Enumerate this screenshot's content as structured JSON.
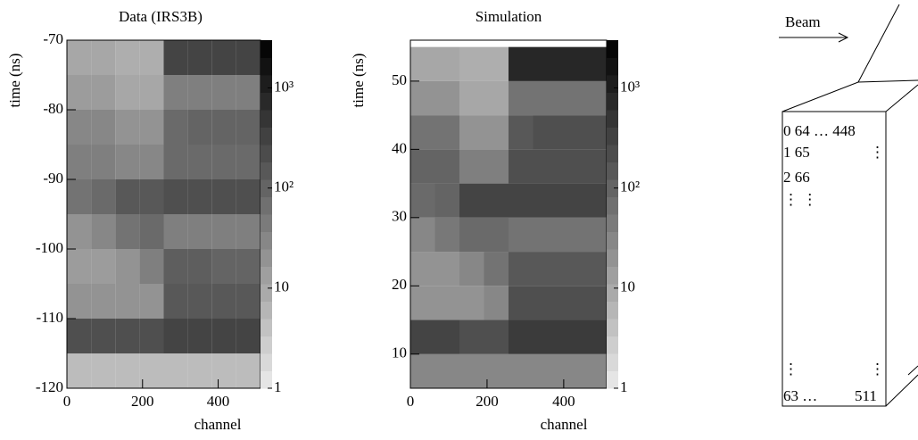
{
  "chart_data": [
    {
      "type": "heatmap",
      "title": "Data (IRS3B)",
      "x_label": "channel",
      "y_label": "time (ns)",
      "xbins": [
        0,
        64,
        128,
        192,
        256,
        320,
        384,
        448,
        512
      ],
      "ybins": [
        -120,
        -115,
        -110,
        -105,
        -100,
        -95,
        -90,
        -85,
        -80,
        -75,
        -70
      ],
      "z": [
        [
          5,
          5,
          5,
          5,
          5,
          5,
          5,
          5
        ],
        [
          200,
          200,
          200,
          200,
          300,
          300,
          300,
          300
        ],
        [
          20,
          20,
          20,
          20,
          150,
          150,
          150,
          150
        ],
        [
          15,
          15,
          20,
          40,
          120,
          120,
          100,
          100
        ],
        [
          20,
          30,
          60,
          80,
          40,
          40,
          40,
          40
        ],
        [
          60,
          80,
          150,
          150,
          200,
          200,
          200,
          200
        ],
        [
          40,
          40,
          30,
          30,
          80,
          80,
          80,
          80
        ],
        [
          30,
          30,
          20,
          20,
          80,
          100,
          100,
          100
        ],
        [
          15,
          15,
          10,
          10,
          40,
          40,
          40,
          40
        ],
        [
          10,
          10,
          8,
          8,
          300,
          300,
          300,
          300
        ]
      ],
      "xlim": [
        0,
        512
      ],
      "xticks": [
        0,
        200,
        400
      ],
      "ylim": [
        -120,
        -70
      ],
      "yticks": [
        -120,
        -110,
        -100,
        -90,
        -80,
        -70
      ],
      "zlim": [
        1,
        3000
      ],
      "zlog": true,
      "zticks": [
        1,
        10,
        {
          "value": 100,
          "label": "10²"
        },
        {
          "value": 1000,
          "label": "10³"
        }
      ]
    },
    {
      "type": "heatmap",
      "title": "Simulation",
      "x_label": "channel",
      "y_label": "time (ns)",
      "xbins": [
        0,
        64,
        128,
        192,
        256,
        320,
        384,
        448,
        512
      ],
      "ybins": [
        5,
        10,
        15,
        20,
        25,
        30,
        35,
        40,
        45,
        50,
        55
      ],
      "z": [
        [
          30,
          30,
          30,
          30,
          30,
          30,
          30,
          30
        ],
        [
          300,
          300,
          200,
          200,
          400,
          400,
          400,
          400
        ],
        [
          20,
          20,
          20,
          30,
          200,
          200,
          200,
          200
        ],
        [
          20,
          20,
          30,
          60,
          150,
          150,
          150,
          150
        ],
        [
          30,
          50,
          80,
          80,
          60,
          60,
          60,
          60
        ],
        [
          80,
          100,
          300,
          300,
          300,
          300,
          300,
          300
        ],
        [
          100,
          100,
          40,
          40,
          200,
          200,
          200,
          200
        ],
        [
          60,
          60,
          20,
          20,
          150,
          200,
          200,
          200
        ],
        [
          20,
          20,
          10,
          10,
          60,
          60,
          60,
          60
        ],
        [
          10,
          10,
          8,
          8,
          800,
          800,
          800,
          800
        ]
      ],
      "xlim": [
        0,
        512
      ],
      "xticks": [
        0,
        200,
        400
      ],
      "ylim": [
        5,
        56
      ],
      "yticks": [
        10,
        20,
        30,
        40,
        50
      ],
      "zlim": [
        1,
        3000
      ],
      "zlog": true,
      "zticks": [
        1,
        10,
        {
          "value": 100,
          "label": "10²"
        },
        {
          "value": 1000,
          "label": "10³"
        }
      ]
    }
  ],
  "diagram": {
    "arrow_label": "Beam",
    "labels": [
      "0 64 … 448",
      "1 65",
      "⋮",
      "2 66",
      "⋮ ⋮",
      "⋮",
      "⋮",
      "63 …",
      "511"
    ]
  }
}
